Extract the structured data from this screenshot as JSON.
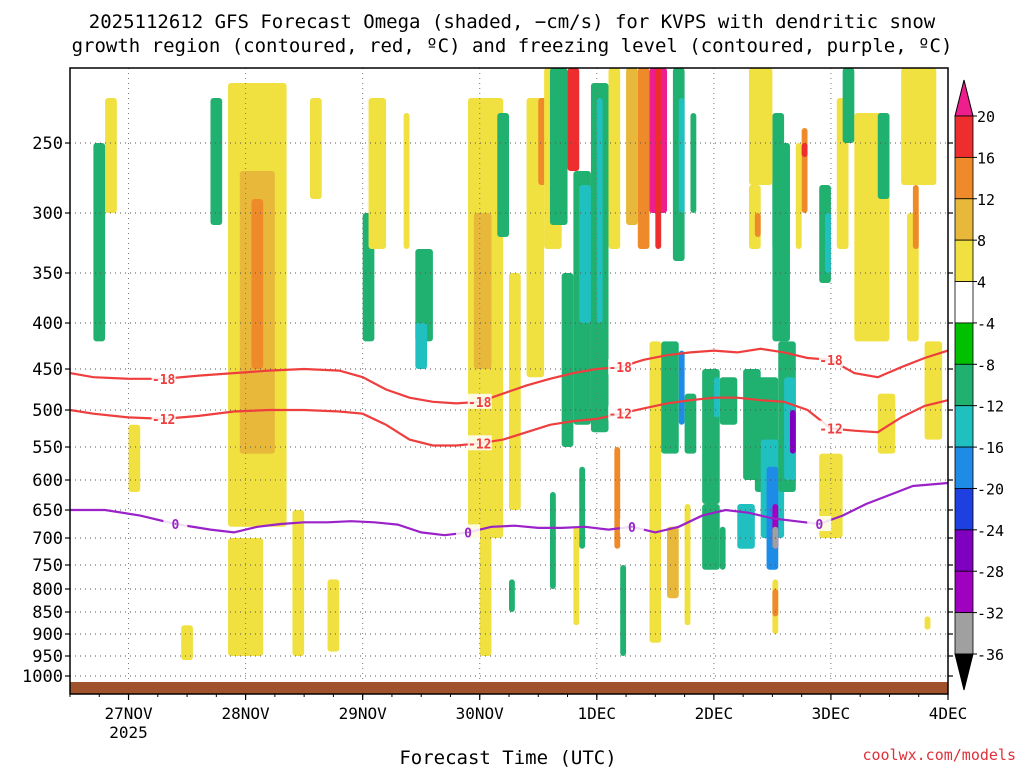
{
  "chart_data": {
    "type": "heatmap",
    "title_line1": "2025112612 GFS Forecast Omega (shaded, −cm/s) for KVPS with dendritic snow",
    "title_line2": "growth region (contoured, red, ºC) and freezing level (contoured, purple, ºC)",
    "xlabel": "Forecast Time (UTC)",
    "ylabel": "",
    "credit": "coolwx.com/models",
    "x_ticks": [
      {
        "day": 0,
        "label": "27NOV",
        "sub": "2025"
      },
      {
        "day": 1,
        "label": "28NOV",
        "sub": ""
      },
      {
        "day": 2,
        "label": "29NOV",
        "sub": ""
      },
      {
        "day": 3,
        "label": "30NOV",
        "sub": ""
      },
      {
        "day": 4,
        "label": "1DEC",
        "sub": ""
      },
      {
        "day": 5,
        "label": "2DEC",
        "sub": ""
      },
      {
        "day": 6,
        "label": "3DEC",
        "sub": ""
      },
      {
        "day": 7,
        "label": "4DEC",
        "sub": ""
      }
    ],
    "xlim": [
      -0.5,
      7
    ],
    "y_levels": [
      {
        "p": 250,
        "label": "250"
      },
      {
        "p": 300,
        "label": "300"
      },
      {
        "p": 350,
        "label": "350"
      },
      {
        "p": 400,
        "label": "400"
      },
      {
        "p": 450,
        "label": "450"
      },
      {
        "p": 500,
        "label": "500"
      },
      {
        "p": 550,
        "label": "550"
      },
      {
        "p": 600,
        "label": "600"
      },
      {
        "p": 650,
        "label": "650"
      },
      {
        "p": 700,
        "label": "700"
      },
      {
        "p": 750,
        "label": "750"
      },
      {
        "p": 800,
        "label": "800"
      },
      {
        "p": 850,
        "label": "850"
      },
      {
        "p": 900,
        "label": "900"
      },
      {
        "p": 950,
        "label": "950"
      },
      {
        "p": 1000,
        "label": "1000"
      }
    ],
    "ylim": [
      200,
      1015
    ],
    "colorbar": {
      "labels": [
        "20",
        "16",
        "12",
        "8",
        "4",
        "-4",
        "-8",
        "-12",
        "-16",
        "-20",
        "-24",
        "-28",
        "-32",
        "-36"
      ],
      "colors": [
        "#ee1e8c",
        "#ee2e2e",
        "#ef8a2a",
        "#e8b83a",
        "#f0e040",
        "#ffffff",
        "#00c000",
        "#20b070",
        "#20c0c0",
        "#1e8ce6",
        "#1e40e0",
        "#8000c0",
        "#a000c0",
        "#a0a0a0",
        "#000000"
      ]
    },
    "omega_regions": [
      {
        "x0": 0.85,
        "x1": 1.35,
        "p0": 210,
        "p1": 680,
        "value": 5
      },
      {
        "x0": 0.95,
        "x1": 1.25,
        "p0": 270,
        "p1": 560,
        "value": 9
      },
      {
        "x0": 1.05,
        "x1": 1.15,
        "p0": 290,
        "p1": 450,
        "value": 12
      },
      {
        "x0": 0.85,
        "x1": 1.15,
        "p0": 700,
        "p1": 950,
        "value": 5
      },
      {
        "x0": 1.4,
        "x1": 1.5,
        "p0": 650,
        "p1": 950,
        "value": 5
      },
      {
        "x0": -0.2,
        "x1": -0.1,
        "p0": 220,
        "p1": 300,
        "value": 5
      },
      {
        "x0": 0.0,
        "x1": 0.1,
        "p0": 520,
        "p1": 620,
        "value": 5
      },
      {
        "x0": -0.3,
        "x1": -0.2,
        "p0": 250,
        "p1": 420,
        "value": -8
      },
      {
        "x0": 0.7,
        "x1": 0.8,
        "p0": 220,
        "p1": 310,
        "value": -8
      },
      {
        "x0": 1.55,
        "x1": 1.65,
        "p0": 220,
        "p1": 290,
        "value": 5
      },
      {
        "x0": 2.0,
        "x1": 2.1,
        "p0": 300,
        "p1": 420,
        "value": -8
      },
      {
        "x0": 2.45,
        "x1": 2.6,
        "p0": 330,
        "p1": 420,
        "value": -8
      },
      {
        "x0": 2.45,
        "x1": 2.55,
        "p0": 400,
        "p1": 450,
        "value": -12
      },
      {
        "x0": 2.05,
        "x1": 2.2,
        "p0": 220,
        "p1": 330,
        "value": 5
      },
      {
        "x0": 2.35,
        "x1": 2.4,
        "p0": 230,
        "p1": 330,
        "value": 5
      },
      {
        "x0": 2.9,
        "x1": 3.2,
        "p0": 220,
        "p1": 700,
        "value": 5
      },
      {
        "x0": 2.95,
        "x1": 3.1,
        "p0": 300,
        "p1": 450,
        "value": 9
      },
      {
        "x0": 3.15,
        "x1": 3.25,
        "p0": 230,
        "p1": 320,
        "value": -8
      },
      {
        "x0": 3.25,
        "x1": 3.35,
        "p0": 350,
        "p1": 650,
        "value": 5
      },
      {
        "x0": 3.4,
        "x1": 3.55,
        "p0": 220,
        "p1": 460,
        "value": 5
      },
      {
        "x0": 3.5,
        "x1": 3.6,
        "p0": 220,
        "p1": 280,
        "value": 12
      },
      {
        "x0": 3.55,
        "x1": 3.7,
        "p0": 200,
        "p1": 330,
        "value": 5
      },
      {
        "x0": 3.6,
        "x1": 3.75,
        "p0": 200,
        "p1": 310,
        "value": -8
      },
      {
        "x0": 3.75,
        "x1": 3.85,
        "p0": 200,
        "p1": 270,
        "value": 16
      },
      {
        "x0": 3.7,
        "x1": 3.8,
        "p0": 350,
        "p1": 550,
        "value": -8
      },
      {
        "x0": 3.8,
        "x1": 3.95,
        "p0": 270,
        "p1": 520,
        "value": -8
      },
      {
        "x0": 3.85,
        "x1": 3.95,
        "p0": 280,
        "p1": 400,
        "value": -12
      },
      {
        "x0": 3.95,
        "x1": 4.1,
        "p0": 210,
        "p1": 530,
        "value": -8
      },
      {
        "x0": 4.0,
        "x1": 4.05,
        "p0": 220,
        "p1": 400,
        "value": -12
      },
      {
        "x0": 4.1,
        "x1": 4.2,
        "p0": 200,
        "p1": 330,
        "value": 5
      },
      {
        "x0": 4.15,
        "x1": 4.2,
        "p0": 550,
        "p1": 720,
        "value": 12
      },
      {
        "x0": 4.25,
        "x1": 4.35,
        "p0": 200,
        "p1": 310,
        "value": 9
      },
      {
        "x0": 4.35,
        "x1": 4.45,
        "p0": 200,
        "p1": 330,
        "value": 12
      },
      {
        "x0": 4.45,
        "x1": 4.6,
        "p0": 200,
        "p1": 300,
        "value": 20
      },
      {
        "x0": 4.5,
        "x1": 4.55,
        "p0": 200,
        "p1": 330,
        "value": 16
      },
      {
        "x0": 4.65,
        "x1": 4.75,
        "p0": 200,
        "p1": 340,
        "value": -8
      },
      {
        "x0": 4.7,
        "x1": 4.75,
        "p0": 220,
        "p1": 300,
        "value": -12
      },
      {
        "x0": 4.8,
        "x1": 4.85,
        "p0": 230,
        "p1": 300,
        "value": -8
      },
      {
        "x0": 4.45,
        "x1": 4.55,
        "p0": 420,
        "p1": 920,
        "value": 5
      },
      {
        "x0": 4.55,
        "x1": 4.7,
        "p0": 420,
        "p1": 560,
        "value": -8
      },
      {
        "x0": 4.7,
        "x1": 4.75,
        "p0": 430,
        "p1": 520,
        "value": -16
      },
      {
        "x0": 4.75,
        "x1": 4.85,
        "p0": 480,
        "p1": 560,
        "value": -8
      },
      {
        "x0": 4.9,
        "x1": 5.05,
        "p0": 450,
        "p1": 640,
        "value": -8
      },
      {
        "x0": 4.9,
        "x1": 5.05,
        "p0": 640,
        "p1": 760,
        "value": -8
      },
      {
        "x0": 5.05,
        "x1": 5.1,
        "p0": 680,
        "p1": 760,
        "value": -8
      },
      {
        "x0": 5.05,
        "x1": 5.2,
        "p0": 460,
        "p1": 520,
        "value": -8
      },
      {
        "x0": 5.0,
        "x1": 5.05,
        "p0": 460,
        "p1": 510,
        "value": -12
      },
      {
        "x0": 5.25,
        "x1": 5.4,
        "p0": 450,
        "p1": 600,
        "value": -8
      },
      {
        "x0": 5.2,
        "x1": 5.35,
        "p0": 640,
        "p1": 720,
        "value": -12
      },
      {
        "x0": 5.35,
        "x1": 5.55,
        "p0": 460,
        "p1": 620,
        "value": -8
      },
      {
        "x0": 5.4,
        "x1": 5.6,
        "p0": 540,
        "p1": 700,
        "value": -12
      },
      {
        "x0": 5.45,
        "x1": 5.55,
        "p0": 580,
        "p1": 760,
        "value": -16
      },
      {
        "x0": 5.5,
        "x1": 5.55,
        "p0": 640,
        "p1": 720,
        "value": -28
      },
      {
        "x0": 5.5,
        "x1": 5.55,
        "p0": 680,
        "p1": 720,
        "value": -32
      },
      {
        "x0": 5.55,
        "x1": 5.7,
        "p0": 420,
        "p1": 620,
        "value": -8
      },
      {
        "x0": 5.6,
        "x1": 5.7,
        "p0": 460,
        "p1": 600,
        "value": -12
      },
      {
        "x0": 5.65,
        "x1": 5.7,
        "p0": 500,
        "p1": 560,
        "value": -24
      },
      {
        "x0": 5.5,
        "x1": 5.6,
        "p0": 230,
        "p1": 330,
        "value": -8
      },
      {
        "x0": 5.5,
        "x1": 5.65,
        "p0": 250,
        "p1": 420,
        "value": -8
      },
      {
        "x0": 5.7,
        "x1": 5.75,
        "p0": 250,
        "p1": 330,
        "value": 5
      },
      {
        "x0": 5.75,
        "x1": 5.8,
        "p0": 240,
        "p1": 300,
        "value": 12
      },
      {
        "x0": 5.75,
        "x1": 5.8,
        "p0": 250,
        "p1": 260,
        "value": 16
      },
      {
        "x0": 5.9,
        "x1": 6.0,
        "p0": 280,
        "p1": 360,
        "value": -8
      },
      {
        "x0": 5.95,
        "x1": 6.0,
        "p0": 300,
        "p1": 350,
        "value": -12
      },
      {
        "x0": 6.05,
        "x1": 6.15,
        "p0": 220,
        "p1": 330,
        "value": 5
      },
      {
        "x0": 6.1,
        "x1": 6.2,
        "p0": 200,
        "p1": 250,
        "value": -8
      },
      {
        "x0": 6.2,
        "x1": 6.5,
        "p0": 230,
        "p1": 420,
        "value": 5
      },
      {
        "x0": 6.4,
        "x1": 6.5,
        "p0": 230,
        "p1": 290,
        "value": -8
      },
      {
        "x0": 6.6,
        "x1": 6.9,
        "p0": 200,
        "p1": 280,
        "value": 5
      },
      {
        "x0": 6.65,
        "x1": 6.75,
        "p0": 300,
        "p1": 420,
        "value": 5
      },
      {
        "x0": 6.7,
        "x1": 6.75,
        "p0": 280,
        "p1": 330,
        "value": 12
      },
      {
        "x0": 5.3,
        "x1": 5.5,
        "p0": 200,
        "p1": 280,
        "value": 5
      },
      {
        "x0": 5.9,
        "x1": 6.1,
        "p0": 560,
        "p1": 700,
        "value": 5
      },
      {
        "x0": 5.3,
        "x1": 5.4,
        "p0": 280,
        "p1": 330,
        "value": 5
      },
      {
        "x0": 5.35,
        "x1": 5.4,
        "p0": 300,
        "p1": 320,
        "value": 12
      },
      {
        "x0": 6.4,
        "x1": 6.55,
        "p0": 480,
        "p1": 560,
        "value": 5
      },
      {
        "x0": 6.8,
        "x1": 6.95,
        "p0": 420,
        "p1": 540,
        "value": 5
      },
      {
        "x0": 5.5,
        "x1": 5.55,
        "p0": 780,
        "p1": 900,
        "value": 5
      },
      {
        "x0": 5.5,
        "x1": 5.55,
        "p0": 800,
        "p1": 860,
        "value": 12
      },
      {
        "x0": 4.6,
        "x1": 4.7,
        "p0": 680,
        "p1": 820,
        "value": 9
      },
      {
        "x0": 4.75,
        "x1": 4.8,
        "p0": 640,
        "p1": 880,
        "value": 5
      },
      {
        "x0": 6.8,
        "x1": 6.85,
        "p0": 860,
        "p1": 890,
        "value": 5
      },
      {
        "x0": 3.0,
        "x1": 3.1,
        "p0": 620,
        "p1": 950,
        "value": 5
      },
      {
        "x0": 3.25,
        "x1": 3.3,
        "p0": 780,
        "p1": 850,
        "value": -8
      },
      {
        "x0": 3.6,
        "x1": 3.65,
        "p0": 620,
        "p1": 800,
        "value": -8
      },
      {
        "x0": 3.8,
        "x1": 3.85,
        "p0": 680,
        "p1": 880,
        "value": 5
      },
      {
        "x0": 4.2,
        "x1": 4.25,
        "p0": 750,
        "p1": 950,
        "value": -8
      },
      {
        "x0": 3.85,
        "x1": 3.9,
        "p0": 580,
        "p1": 720,
        "value": -8
      },
      {
        "x0": 0.45,
        "x1": 0.55,
        "p0": 880,
        "p1": 960,
        "value": 5
      },
      {
        "x0": 1.7,
        "x1": 1.8,
        "p0": 780,
        "p1": 940,
        "value": 5
      }
    ],
    "contours": [
      {
        "name": "minus-18",
        "color": "#ee3e3e",
        "label": "-18",
        "x": [
          -0.5,
          -0.3,
          0.0,
          0.3,
          0.6,
          0.9,
          1.2,
          1.5,
          1.8,
          2.0,
          2.2,
          2.4,
          2.6,
          2.8,
          3.0,
          3.2,
          3.4,
          3.6,
          3.8,
          4.0,
          4.2,
          4.4,
          4.6,
          4.8,
          5.0,
          5.2,
          5.4,
          5.6,
          5.8,
          6.0,
          6.2,
          6.4,
          6.6,
          6.8,
          7.0
        ],
        "p": [
          455,
          460,
          462,
          462,
          458,
          455,
          452,
          450,
          452,
          460,
          475,
          485,
          490,
          492,
          490,
          480,
          470,
          462,
          455,
          450,
          448,
          440,
          435,
          432,
          430,
          432,
          428,
          432,
          438,
          440,
          455,
          460,
          448,
          438,
          430
        ]
      },
      {
        "name": "minus-12",
        "color": "#ee3e3e",
        "label": "-12",
        "x": [
          -0.5,
          -0.3,
          0.0,
          0.3,
          0.6,
          0.9,
          1.2,
          1.5,
          1.8,
          2.0,
          2.2,
          2.4,
          2.6,
          2.8,
          3.0,
          3.2,
          3.4,
          3.6,
          3.8,
          4.0,
          4.2,
          4.4,
          4.6,
          4.8,
          5.0,
          5.2,
          5.4,
          5.6,
          5.8,
          6.0,
          6.2,
          6.4,
          6.6,
          6.8,
          7.0
        ],
        "p": [
          500,
          505,
          510,
          512,
          508,
          502,
          500,
          500,
          502,
          505,
          520,
          540,
          548,
          548,
          545,
          540,
          530,
          520,
          515,
          512,
          505,
          498,
          492,
          488,
          485,
          485,
          488,
          490,
          500,
          525,
          528,
          530,
          510,
          495,
          488
        ]
      },
      {
        "name": "zero-isotherm",
        "color": "#9a22c8",
        "label": "0",
        "x": [
          -0.5,
          -0.2,
          0.1,
          0.4,
          0.7,
          0.9,
          1.1,
          1.3,
          1.5,
          1.7,
          1.9,
          2.1,
          2.3,
          2.5,
          2.7,
          2.9,
          3.1,
          3.3,
          3.5,
          3.7,
          3.9,
          4.1,
          4.3,
          4.5,
          4.7,
          4.9,
          5.1,
          5.3,
          5.5,
          5.7,
          5.9,
          6.1,
          6.3,
          6.5,
          6.7,
          7.0
        ],
        "p": [
          650,
          650,
          660,
          675,
          685,
          690,
          680,
          675,
          672,
          672,
          670,
          672,
          676,
          690,
          695,
          690,
          680,
          678,
          682,
          682,
          680,
          685,
          680,
          690,
          680,
          660,
          650,
          655,
          665,
          670,
          675,
          660,
          640,
          625,
          610,
          605
        ]
      }
    ]
  }
}
